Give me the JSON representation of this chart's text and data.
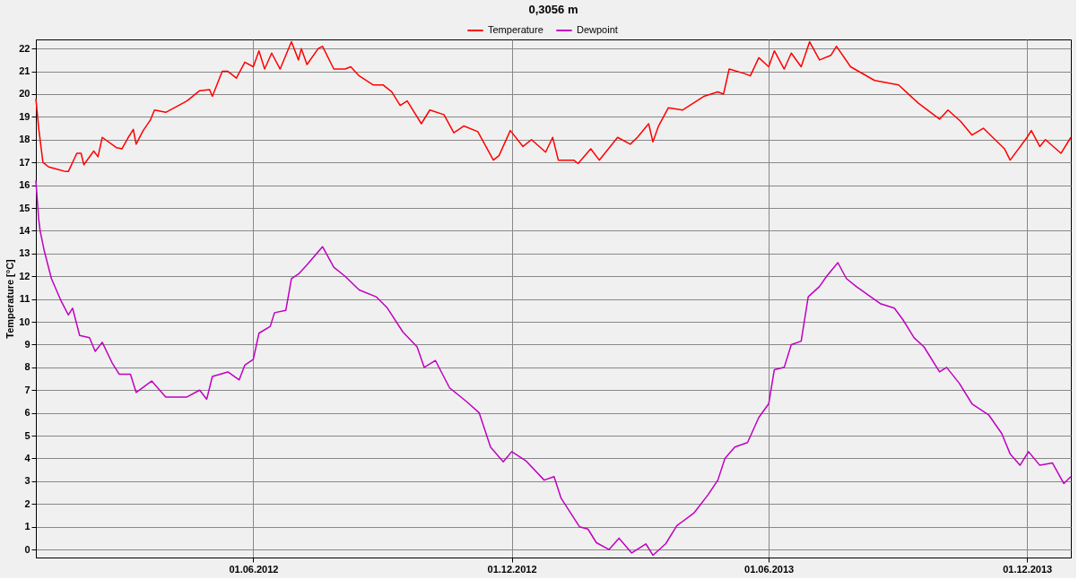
{
  "chart_data": {
    "type": "line",
    "title": "0,3056 m",
    "ylabel": "Temperature [°C]",
    "xlim": [
      "2011-12-30",
      "2014-01-01"
    ],
    "xticks": [
      {
        "value": "2012-06-01",
        "label": "01.06.2012"
      },
      {
        "value": "2012-12-01",
        "label": "01.12.2012"
      },
      {
        "value": "2013-06-01",
        "label": "01.06.2013"
      },
      {
        "value": "2013-12-01",
        "label": "01.12.2013"
      }
    ],
    "ylim": [
      -0.35,
      22.4
    ],
    "yticks": [
      0,
      1,
      2,
      3,
      4,
      5,
      6,
      7,
      8,
      9,
      10,
      11,
      12,
      13,
      14,
      15,
      16,
      17,
      18,
      19,
      20,
      21,
      22
    ],
    "grid": true,
    "legend": "top",
    "marker": "none",
    "line_style": "solid",
    "series": [
      {
        "name": "Temperature",
        "color": "#ff0000",
        "x": [
          "2011-12-30",
          "2012-01-01",
          "2012-01-04",
          "2012-01-08",
          "2012-01-14",
          "2012-01-20",
          "2012-01-22",
          "2012-01-28",
          "2012-01-31",
          "2012-02-02",
          "2012-02-09",
          "2012-02-12",
          "2012-02-15",
          "2012-02-25",
          "2012-02-29",
          "2012-03-04",
          "2012-03-08",
          "2012-03-10",
          "2012-03-15",
          "2012-03-20",
          "2012-03-23",
          "2012-03-31",
          "2012-04-15",
          "2012-04-24",
          "2012-05-01",
          "2012-05-03",
          "2012-05-10",
          "2012-05-14",
          "2012-05-20",
          "2012-05-26",
          "2012-06-01",
          "2012-06-05",
          "2012-06-09",
          "2012-06-14",
          "2012-06-20",
          "2012-06-28",
          "2012-07-03",
          "2012-07-05",
          "2012-07-09",
          "2012-07-17",
          "2012-07-20",
          "2012-07-28",
          "2012-08-05",
          "2012-08-09",
          "2012-08-15",
          "2012-08-25",
          "2012-09-01",
          "2012-09-07",
          "2012-09-13",
          "2012-09-18",
          "2012-09-28",
          "2012-10-04",
          "2012-10-14",
          "2012-10-21",
          "2012-10-28",
          "2012-11-07",
          "2012-11-18",
          "2012-11-22",
          "2012-11-30",
          "2012-12-09",
          "2012-12-15",
          "2012-12-25",
          "2012-12-30",
          "2013-01-03",
          "2013-01-14",
          "2013-01-17",
          "2013-01-26",
          "2013-02-01",
          "2013-02-14",
          "2013-02-23",
          "2013-02-28",
          "2013-03-08",
          "2013-03-11",
          "2013-03-15",
          "2013-03-22",
          "2013-04-01",
          "2013-04-16",
          "2013-04-26",
          "2013-04-30",
          "2013-05-04",
          "2013-05-15",
          "2013-05-19",
          "2013-05-25",
          "2013-06-01",
          "2013-06-05",
          "2013-06-12",
          "2013-06-17",
          "2013-06-24",
          "2013-06-30",
          "2013-07-07",
          "2013-07-15",
          "2013-07-19",
          "2013-07-29",
          "2013-08-15",
          "2013-09-01",
          "2013-09-15",
          "2013-09-30",
          "2013-10-06",
          "2013-10-15",
          "2013-10-23",
          "2013-10-31",
          "2013-11-15",
          "2013-11-19",
          "2013-12-01",
          "2013-12-04",
          "2013-12-10",
          "2013-12-14",
          "2013-12-25",
          "2014-01-01"
        ],
        "values": [
          19.8,
          18.5,
          17.0,
          16.8,
          16.7,
          16.6,
          16.6,
          17.4,
          17.4,
          16.9,
          17.5,
          17.25,
          18.1,
          17.65,
          17.6,
          18.05,
          18.45,
          17.8,
          18.4,
          18.85,
          19.3,
          19.2,
          19.7,
          20.15,
          20.2,
          19.9,
          21.0,
          21.0,
          20.7,
          21.4,
          21.2,
          21.9,
          21.1,
          21.8,
          21.1,
          22.3,
          21.5,
          22.0,
          21.3,
          22.0,
          22.1,
          21.1,
          21.1,
          21.2,
          20.8,
          20.4,
          20.4,
          20.1,
          19.5,
          19.7,
          18.7,
          19.3,
          19.1,
          18.3,
          18.6,
          18.35,
          17.1,
          17.3,
          18.4,
          17.7,
          18.0,
          17.45,
          18.1,
          17.1,
          17.1,
          16.95,
          17.6,
          17.1,
          18.1,
          17.8,
          18.1,
          18.7,
          17.9,
          18.6,
          19.4,
          19.3,
          19.9,
          20.1,
          20.0,
          21.1,
          20.9,
          20.8,
          21.6,
          21.2,
          21.9,
          21.1,
          21.8,
          21.2,
          22.3,
          21.5,
          21.7,
          22.1,
          21.2,
          20.6,
          20.4,
          19.6,
          18.9,
          19.3,
          18.8,
          18.2,
          18.5,
          17.6,
          17.1,
          18.1,
          18.4,
          17.7,
          18.0,
          17.4,
          18.1
        ]
      },
      {
        "name": "Dewpoint",
        "color": "#c000c0",
        "x": [
          "2011-12-30",
          "2012-01-01",
          "2012-01-02",
          "2012-01-05",
          "2012-01-10",
          "2012-01-17",
          "2012-01-22",
          "2012-01-25",
          "2012-01-30",
          "2012-02-06",
          "2012-02-10",
          "2012-02-15",
          "2012-02-22",
          "2012-02-27",
          "2012-03-06",
          "2012-03-10",
          "2012-03-21",
          "2012-03-31",
          "2012-04-15",
          "2012-04-24",
          "2012-04-29",
          "2012-05-03",
          "2012-05-14",
          "2012-05-22",
          "2012-05-26",
          "2012-06-01",
          "2012-06-05",
          "2012-06-13",
          "2012-06-16",
          "2012-06-24",
          "2012-06-28",
          "2012-07-03",
          "2012-07-09",
          "2012-07-20",
          "2012-07-28",
          "2012-08-05",
          "2012-08-15",
          "2012-08-27",
          "2012-09-04",
          "2012-09-15",
          "2012-09-25",
          "2012-09-30",
          "2012-10-08",
          "2012-10-18",
          "2012-10-30",
          "2012-11-08",
          "2012-11-16",
          "2012-11-25",
          "2012-12-01",
          "2012-12-11",
          "2012-12-24",
          "2012-12-31",
          "2013-01-05",
          "2013-01-18",
          "2013-01-24",
          "2013-01-30",
          "2013-02-08",
          "2013-02-15",
          "2013-02-24",
          "2013-03-06",
          "2013-03-11",
          "2013-03-20",
          "2013-03-28",
          "2013-04-09",
          "2013-04-19",
          "2013-04-26",
          "2013-05-01",
          "2013-05-08",
          "2013-05-17",
          "2013-05-25",
          "2013-06-01",
          "2013-06-05",
          "2013-06-12",
          "2013-06-17",
          "2013-06-24",
          "2013-06-29",
          "2013-07-07",
          "2013-07-12",
          "2013-07-20",
          "2013-07-26",
          "2013-08-02",
          "2013-08-10",
          "2013-08-19",
          "2013-08-29",
          "2013-09-04",
          "2013-09-12",
          "2013-09-19",
          "2013-09-30",
          "2013-10-05",
          "2013-10-14",
          "2013-10-23",
          "2013-11-04",
          "2013-11-13",
          "2013-11-19",
          "2013-11-26",
          "2013-12-02",
          "2013-12-10",
          "2013-12-19",
          "2013-12-27",
          "2014-01-01"
        ],
        "values": [
          16.2,
          14.5,
          14.0,
          13.1,
          11.9,
          10.9,
          10.3,
          10.6,
          9.4,
          9.3,
          8.7,
          9.1,
          8.2,
          7.7,
          7.7,
          6.9,
          7.4,
          6.7,
          6.7,
          7.0,
          6.6,
          7.6,
          7.8,
          7.45,
          8.1,
          8.35,
          9.5,
          9.8,
          10.4,
          10.5,
          11.9,
          12.1,
          12.5,
          13.3,
          12.4,
          12.0,
          11.4,
          11.1,
          10.6,
          9.55,
          8.9,
          8.0,
          8.3,
          7.1,
          6.5,
          6.0,
          4.5,
          3.85,
          4.3,
          3.9,
          3.05,
          3.2,
          2.25,
          1.0,
          0.9,
          0.3,
          0.0,
          0.5,
          -0.15,
          0.25,
          -0.25,
          0.25,
          1.05,
          1.6,
          2.4,
          3.05,
          4.0,
          4.5,
          4.7,
          5.8,
          6.4,
          7.9,
          8.0,
          9.0,
          9.15,
          11.1,
          11.55,
          12.0,
          12.6,
          11.9,
          11.55,
          11.2,
          10.8,
          10.6,
          10.1,
          9.3,
          8.9,
          7.8,
          8.0,
          7.3,
          6.4,
          5.9,
          5.1,
          4.2,
          3.7,
          4.3,
          3.7,
          3.8,
          2.9,
          3.2
        ]
      }
    ]
  }
}
